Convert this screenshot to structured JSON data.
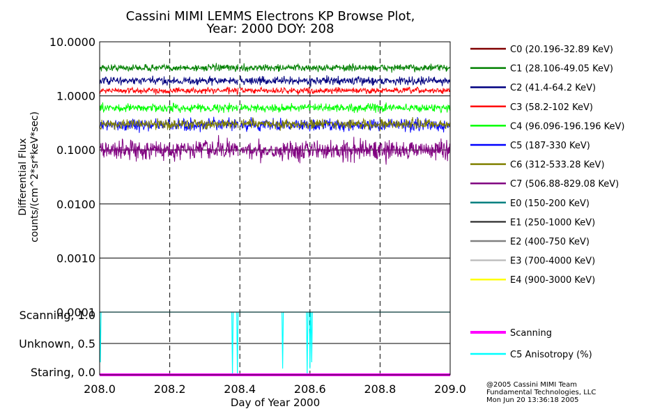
{
  "title_line1": "Cassini MIMI LEMMS Electrons KP Browse Plot,",
  "title_line2": "Year: 2000 DOY: 208",
  "credit": {
    "line1": "@2005 Cassini MIMI Team",
    "line2": "Fundamental Technologies, LLC",
    "line3": "Mon Jun 20 13:36:18 2005"
  },
  "chart_data": [
    {
      "type": "line",
      "panel": "flux",
      "yscale": "log",
      "ylabel_line1": "Differential Flux",
      "ylabel_line2": "counts/(cm^2*sr*keV*sec)",
      "ylim": [
        0.0001,
        10.0
      ],
      "ytick_values": [
        10.0,
        1.0,
        0.1,
        0.01,
        0.001,
        0.0001
      ],
      "ytick_labels": [
        "10.0000",
        "1.0000",
        "0.1000",
        "0.0100",
        "0.0010",
        "0.0001"
      ],
      "xlim": [
        208.0,
        209.0
      ],
      "data_gap": [
        208.395,
        208.402
      ],
      "series": [
        {
          "name": "C0 (20.196-32.89 KeV)",
          "color": "#800000",
          "level": null,
          "noise": 0
        },
        {
          "name": "C1 (28.106-49.05 KeV)",
          "color": "#008000",
          "level": 3.3,
          "noise": 0.07
        },
        {
          "name": "C2 (41.4-64.2 KeV)",
          "color": "#000080",
          "level": 1.9,
          "noise": 0.08
        },
        {
          "name": "C3 (58.2-102 KeV)",
          "color": "#ff0000",
          "level": 1.25,
          "noise": 0.06
        },
        {
          "name": "C4 (96.096-196.196 KeV)",
          "color": "#00ff00",
          "level": 0.6,
          "noise": 0.08
        },
        {
          "name": "C5 (187-330 KeV)",
          "color": "#0000ff",
          "level": 0.29,
          "noise": 0.12
        },
        {
          "name": "C6 (312-533.28 KeV)",
          "color": "#808000",
          "level": 0.3,
          "noise": 0.1
        },
        {
          "name": "C7 (506.88-829.08 KeV)",
          "color": "#800080",
          "level": 0.1,
          "noise": 0.2
        },
        {
          "name": "E0 (150-200 KeV)",
          "color": "#008080",
          "level": null,
          "noise": 0
        },
        {
          "name": "E1 (250-1000 KeV)",
          "color": "#404040",
          "level": null,
          "noise": 0
        },
        {
          "name": "E2 (400-750 KeV)",
          "color": "#808080",
          "level": null,
          "noise": 0
        },
        {
          "name": "E3 (700-4000 KeV)",
          "color": "#c0c0c0",
          "level": null,
          "noise": 0
        },
        {
          "name": "E4 (900-3000 KeV)",
          "color": "#ffff00",
          "level": null,
          "noise": 0
        }
      ]
    },
    {
      "type": "line",
      "panel": "mode",
      "ylim": [
        0.0,
        1.0
      ],
      "ytick_values": [
        1.0,
        0.5,
        0.0
      ],
      "ytick_labels": [
        "Scanning, 1.0",
        "Unknown, 0.5",
        "Staring, 0.0"
      ],
      "xlim": [
        208.0,
        209.0
      ],
      "xticks": [
        208.0,
        208.2,
        208.4,
        208.6,
        208.8,
        209.0
      ],
      "xtick_labels": [
        "208.0",
        "208.2",
        "208.4",
        "208.6",
        "208.8",
        "209.0"
      ],
      "xlabel": "Day of Year 2000",
      "series": [
        {
          "name": "Scanning",
          "color": "#ff00ff",
          "constant": 0.0
        },
        {
          "name": "C5 Anisotropy (%)",
          "color": "#00ffff",
          "baseline": 1.0,
          "dips": [
            {
              "x": 208.002,
              "y": 0.2
            },
            {
              "x": 208.379,
              "y": 0.0
            },
            {
              "x": 208.393,
              "y": 0.0
            },
            {
              "x": 208.522,
              "y": 0.1
            },
            {
              "x": 208.592,
              "y": 0.0
            },
            {
              "x": 208.6,
              "y": 0.1
            },
            {
              "x": 208.605,
              "y": 0.2
            }
          ]
        }
      ]
    }
  ]
}
